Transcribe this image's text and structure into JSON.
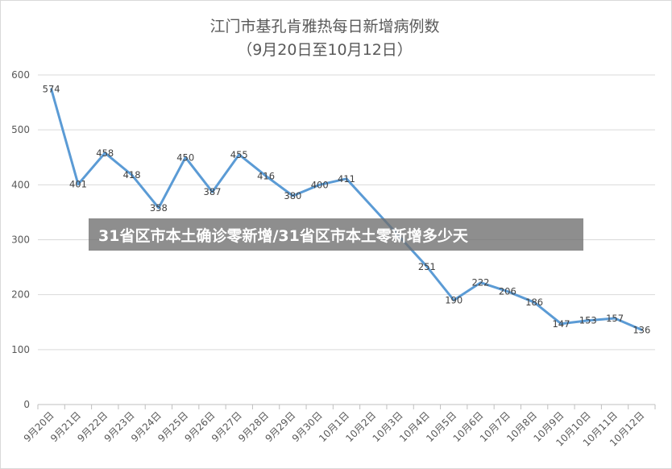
{
  "chart_data": {
    "type": "line",
    "title": "江门市基孔肯雅热每日新增病例数",
    "subtitle": "（9月20日至10月12日）",
    "categories": [
      "9月20日",
      "9月21日",
      "9月22日",
      "9月23日",
      "9月24日",
      "9月25日",
      "9月26日",
      "9月27日",
      "9月28日",
      "9月29日",
      "9月30日",
      "10月1日",
      "10月2日",
      "10月3日",
      "10月4日",
      "10月5日",
      "10月6日",
      "10月7日",
      "10月8日",
      "10月9日",
      "10月10日",
      "10月11日",
      "10月12日"
    ],
    "series": [
      {
        "values": [
          574,
          401,
          458,
          418,
          358,
          450,
          387,
          455,
          416,
          380,
          400,
          411,
          null,
          null,
          251,
          190,
          222,
          206,
          186,
          147,
          153,
          157,
          136
        ],
        "labels": [
          "574",
          "401",
          "458",
          "418",
          "358",
          "450",
          "387",
          "455",
          "416",
          "380",
          "400",
          "411",
          "",
          "",
          "251",
          "190",
          "222",
          "206",
          "186",
          "147",
          "153",
          "157",
          "136"
        ]
      }
    ],
    "ylim": [
      0,
      600
    ],
    "yticks": [
      "0",
      "100",
      "200",
      "300",
      "400",
      "500",
      "600"
    ],
    "grid": true,
    "line_color": "#5B9BD5"
  },
  "banner": {
    "text": "31省区市本土确诊零新增/31省区市本土零新增多少天"
  }
}
